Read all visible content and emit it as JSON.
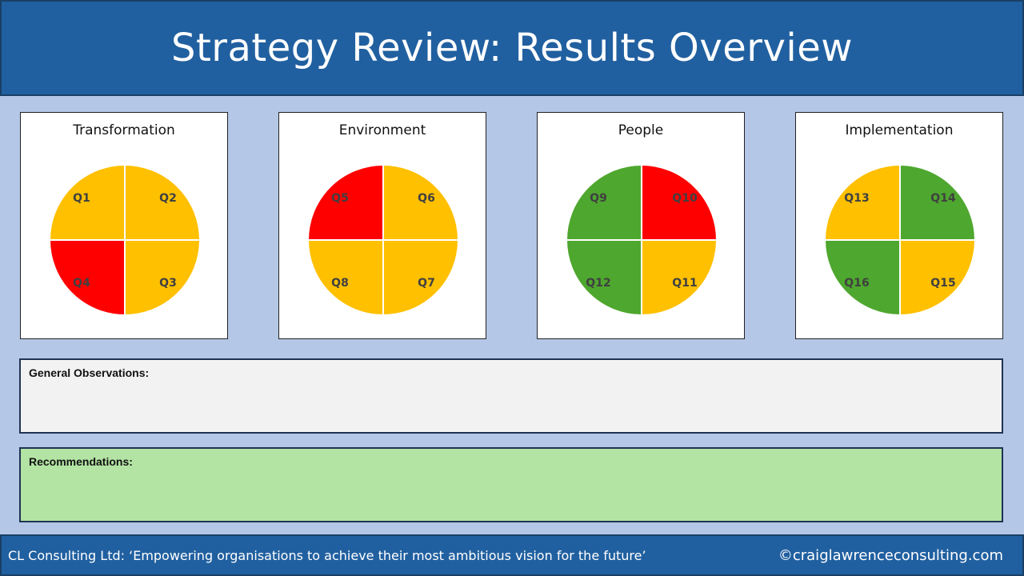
{
  "header": {
    "title": "Strategy Review: Results Overview"
  },
  "colors": {
    "amber": "#ffc000",
    "red": "#ff0000",
    "green": "#4ea72e",
    "header_blue": "#2160a0",
    "page_bg": "#b4c7e7",
    "observations_bg": "#f2f2f2",
    "recommendations_bg": "#b3e4a4"
  },
  "cards": [
    {
      "title": "Transformation",
      "quadrants": [
        {
          "label": "Q1",
          "status": "amber"
        },
        {
          "label": "Q2",
          "status": "amber"
        },
        {
          "label": "Q3",
          "status": "amber"
        },
        {
          "label": "Q4",
          "status": "red"
        }
      ]
    },
    {
      "title": "Environment",
      "quadrants": [
        {
          "label": "Q5",
          "status": "red"
        },
        {
          "label": "Q6",
          "status": "amber"
        },
        {
          "label": "Q7",
          "status": "amber"
        },
        {
          "label": "Q8",
          "status": "amber"
        }
      ]
    },
    {
      "title": "People",
      "quadrants": [
        {
          "label": "Q9",
          "status": "green"
        },
        {
          "label": "Q10",
          "status": "red"
        },
        {
          "label": "Q11",
          "status": "amber"
        },
        {
          "label": "Q12",
          "status": "green"
        }
      ]
    },
    {
      "title": "Implementation",
      "quadrants": [
        {
          "label": "Q13",
          "status": "amber"
        },
        {
          "label": "Q14",
          "status": "green"
        },
        {
          "label": "Q15",
          "status": "amber"
        },
        {
          "label": "Q16",
          "status": "green"
        }
      ]
    }
  ],
  "observations": {
    "label": "General Observations:"
  },
  "recommendations": {
    "label": "Recommendations:"
  },
  "footer": {
    "tagline": "CL Consulting Ltd: ‘Empowering organisations to achieve their most ambitious vision for the future’",
    "copyright": "©craiglawrenceconsulting.com"
  }
}
